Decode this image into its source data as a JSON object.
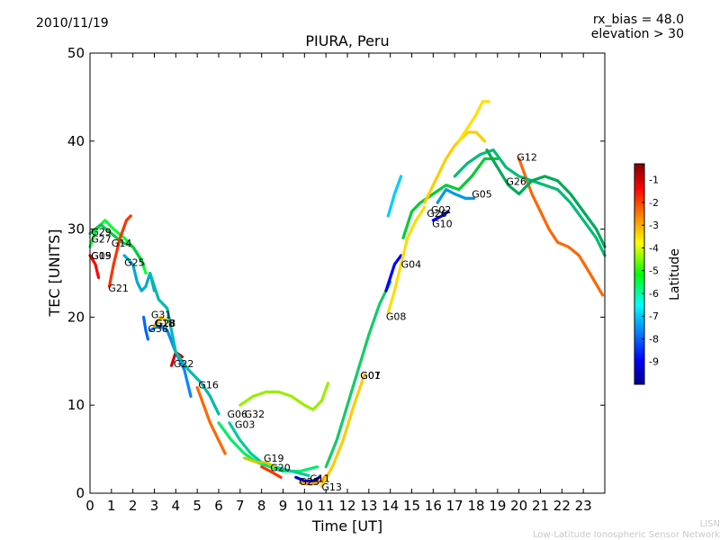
{
  "header": {
    "date": "2010/11/19",
    "rx_bias": "rx_bias = 48.0",
    "elevation": "elevation > 30"
  },
  "footer": {
    "line1": "LISN",
    "line2": "Low-Latitude Ionospheric Sensor Network"
  },
  "chart_data": {
    "type": "line",
    "title": "PIURA, Peru",
    "xlabel": "Time [UT]",
    "ylabel": "TEC [UNITS]",
    "xlim": [
      0,
      24
    ],
    "ylim": [
      0,
      50
    ],
    "xticks": [
      "0",
      "1",
      "2",
      "3",
      "4",
      "5",
      "6",
      "7",
      "8",
      "9",
      "10",
      "11",
      "12",
      "13",
      "14",
      "15",
      "16",
      "17",
      "18",
      "19",
      "20",
      "21",
      "22",
      "23"
    ],
    "yticks": [
      "0",
      "10",
      "20",
      "30",
      "40",
      "50"
    ],
    "grid": false,
    "colorbar": {
      "label": "Latitude",
      "range": [
        -10,
        -0.3
      ],
      "ticks": [
        "-1",
        "-2",
        "-3",
        "-4",
        "-5",
        "-6",
        "-7",
        "-8",
        "-9"
      ]
    },
    "series": [
      {
        "name": "G29",
        "color": "#ff0000",
        "points": [
          [
            0,
            27
          ],
          [
            0.25,
            26
          ],
          [
            0.4,
            24.5
          ]
        ]
      },
      {
        "name": "G27",
        "color": "#00ff33",
        "points": [
          [
            0,
            28
          ],
          [
            0.3,
            30
          ],
          [
            0.7,
            31
          ],
          [
            1.1,
            30
          ],
          [
            1.6,
            29
          ],
          [
            2.0,
            28
          ],
          [
            2.4,
            26.5
          ],
          [
            2.6,
            25
          ]
        ]
      },
      {
        "name": "G14",
        "color": "#00cc44",
        "points": [
          [
            0,
            29.5
          ],
          [
            0.5,
            30.5
          ],
          [
            1,
            29.5
          ],
          [
            1.5,
            28.5
          ],
          [
            2,
            28
          ],
          [
            2.5,
            26
          ]
        ]
      },
      {
        "name": "G21",
        "color": "#ff3300",
        "points": [
          [
            0.9,
            23.5
          ],
          [
            1.1,
            26
          ],
          [
            1.4,
            29
          ],
          [
            1.7,
            31
          ],
          [
            1.9,
            31.5
          ]
        ]
      },
      {
        "name": "G25",
        "color": "#00aacc",
        "points": [
          [
            1.6,
            27
          ],
          [
            2,
            26
          ],
          [
            2.2,
            24
          ],
          [
            2.4,
            23
          ],
          [
            2.6,
            23.5
          ],
          [
            2.8,
            25
          ],
          [
            3.0,
            23
          ]
        ]
      },
      {
        "name": "G31",
        "color": "#0066ff",
        "points": [
          [
            2.5,
            20
          ],
          [
            2.6,
            18.5
          ],
          [
            2.7,
            17.5
          ]
        ]
      },
      {
        "name": "G38",
        "color": "#0088ff",
        "points": [
          [
            2.8,
            18.5
          ],
          [
            3.2,
            19
          ],
          [
            3.6,
            18.5
          ],
          [
            4.0,
            16
          ],
          [
            4.4,
            14
          ],
          [
            4.7,
            11
          ]
        ]
      },
      {
        "name": "G18",
        "color": "#ffcc00",
        "points": [
          [
            3.0,
            19
          ],
          [
            3.3,
            20
          ],
          [
            3.6,
            19.5
          ]
        ]
      },
      {
        "name": "G22",
        "color": "#cc0000",
        "points": [
          [
            3.8,
            14.5
          ],
          [
            4.0,
            16
          ],
          [
            4.3,
            15.5
          ]
        ]
      },
      {
        "name": "G16",
        "color": "#00bbaa",
        "points": [
          [
            2.8,
            25
          ],
          [
            3.2,
            22
          ],
          [
            3.6,
            21
          ],
          [
            4.0,
            16
          ],
          [
            4.6,
            14
          ],
          [
            5.2,
            12.5
          ],
          [
            5.6,
            11
          ],
          [
            6.0,
            9
          ]
        ]
      },
      {
        "name": "G06",
        "color": "#ff6600",
        "points": [
          [
            5.0,
            12
          ],
          [
            5.3,
            10
          ],
          [
            5.6,
            8
          ],
          [
            6.0,
            6
          ],
          [
            6.3,
            4.5
          ]
        ]
      },
      {
        "name": "G32",
        "color": "#00ee66",
        "points": [
          [
            6.0,
            8
          ],
          [
            6.6,
            6
          ],
          [
            7.2,
            4.5
          ],
          [
            7.8,
            3.5
          ],
          [
            8.4,
            3
          ],
          [
            9.0,
            2.5
          ],
          [
            9.8,
            2.5
          ],
          [
            10.6,
            3
          ]
        ]
      },
      {
        "name": "G03",
        "color": "#00cc99",
        "points": [
          [
            6.5,
            8
          ],
          [
            7.0,
            6
          ],
          [
            7.5,
            4.5
          ],
          [
            8.0,
            3.5
          ],
          [
            8.6,
            3
          ],
          [
            9.4,
            2.5
          ],
          [
            10.2,
            2
          ]
        ]
      },
      {
        "name": "G19",
        "color": "#cccc00",
        "points": [
          [
            7.2,
            4
          ],
          [
            7.8,
            3.5
          ],
          [
            8.2,
            3.5
          ],
          [
            8.6,
            3
          ]
        ]
      },
      {
        "name": "G20",
        "color": "#ff3300",
        "points": [
          [
            8.0,
            3
          ],
          [
            8.4,
            2.5
          ],
          [
            8.9,
            1.8
          ]
        ]
      },
      {
        "name": "G23",
        "color": "#0000cc",
        "points": [
          [
            9.6,
            1.8
          ],
          [
            10.0,
            1.4
          ],
          [
            10.4,
            1.4
          ],
          [
            10.7,
            1.8
          ]
        ]
      },
      {
        "name": "G11",
        "color": "#ff9900",
        "points": [
          [
            9.8,
            1.2
          ],
          [
            10.3,
            1.0
          ],
          [
            10.8,
            1.4
          ],
          [
            11.0,
            2
          ]
        ]
      },
      {
        "name": "G13",
        "color": "#ffcc00",
        "points": [
          [
            10.8,
            0.8
          ],
          [
            11.3,
            3
          ],
          [
            11.8,
            6
          ],
          [
            12.3,
            10
          ],
          [
            12.8,
            13.5
          ]
        ]
      },
      {
        "name": "G07",
        "color": "#11cc66",
        "points": [
          [
            11.0,
            3
          ],
          [
            11.5,
            6
          ],
          [
            12.0,
            10
          ],
          [
            12.5,
            14
          ],
          [
            13.0,
            18
          ],
          [
            13.5,
            21.5
          ],
          [
            14.0,
            24
          ]
        ]
      },
      {
        "name": "G04",
        "color": "#0000ff",
        "points": [
          [
            13.8,
            23
          ],
          [
            14.2,
            26
          ],
          [
            14.5,
            27
          ]
        ]
      },
      {
        "name": "G08",
        "color": "#ffdd00",
        "points": [
          [
            13.9,
            20.5
          ],
          [
            14.2,
            23
          ],
          [
            14.5,
            26
          ],
          [
            14.8,
            29
          ],
          [
            15.2,
            31
          ],
          [
            15.6,
            32.5
          ]
        ]
      },
      {
        "name": "G02",
        "color": "#00cc33",
        "points": [
          [
            14.6,
            29
          ],
          [
            15.0,
            32
          ],
          [
            15.4,
            33
          ],
          [
            16.0,
            34
          ],
          [
            16.6,
            35
          ],
          [
            17.2,
            34.5
          ],
          [
            17.8,
            36
          ],
          [
            18.4,
            38
          ],
          [
            19.0,
            38
          ]
        ]
      },
      {
        "name": "G10",
        "color": "#0000ff",
        "points": [
          [
            16.0,
            31
          ],
          [
            16.4,
            31.5
          ],
          [
            16.7,
            32
          ]
        ]
      },
      {
        "name": "G05",
        "color": "#0099dd",
        "points": [
          [
            16.2,
            33
          ],
          [
            16.6,
            34.5
          ],
          [
            17.0,
            34
          ],
          [
            17.5,
            33.5
          ],
          [
            17.9,
            33.5
          ]
        ]
      },
      {
        "name": "G26",
        "color": "#ffcc00",
        "points": [
          [
            15.6,
            33
          ],
          [
            16.0,
            35
          ],
          [
            16.6,
            38
          ],
          [
            17.0,
            39.5
          ],
          [
            17.6,
            41
          ],
          [
            18.0,
            41
          ],
          [
            18.4,
            40
          ]
        ]
      },
      {
        "name": "G12",
        "color": "#ff6600",
        "points": [
          [
            20.0,
            38
          ],
          [
            20.3,
            36
          ],
          [
            20.6,
            34
          ],
          [
            21.0,
            32
          ],
          [
            21.4,
            30
          ],
          [
            21.8,
            28.5
          ],
          [
            22.3,
            28
          ],
          [
            22.8,
            27
          ],
          [
            23.3,
            25
          ],
          [
            23.9,
            22.5
          ]
        ]
      },
      {
        "name": "",
        "color": "#00bb77",
        "points": [
          [
            17.0,
            36
          ],
          [
            17.6,
            37.5
          ],
          [
            18.2,
            38.5
          ],
          [
            18.8,
            39
          ],
          [
            19.4,
            37
          ],
          [
            20.0,
            36
          ],
          [
            20.6,
            35.5
          ],
          [
            21.2,
            35
          ],
          [
            21.8,
            34.5
          ],
          [
            22.4,
            33
          ],
          [
            23.0,
            31
          ],
          [
            23.6,
            29
          ],
          [
            24,
            27
          ]
        ]
      },
      {
        "name": "",
        "color": "#ffe000",
        "points": [
          [
            17.2,
            40
          ],
          [
            17.6,
            41.5
          ],
          [
            18.0,
            43
          ],
          [
            18.3,
            44.5
          ],
          [
            18.6,
            44.5
          ]
        ]
      },
      {
        "name": "",
        "color": "#00aa55",
        "points": [
          [
            18.5,
            39
          ],
          [
            19.0,
            37
          ],
          [
            19.5,
            35
          ],
          [
            20.0,
            34
          ],
          [
            20.6,
            35.5
          ],
          [
            21.2,
            36
          ],
          [
            21.8,
            35.5
          ],
          [
            22.4,
            34
          ],
          [
            23.0,
            32
          ],
          [
            23.6,
            30
          ],
          [
            24,
            28
          ]
        ]
      },
      {
        "name": "",
        "color": "#00ccff",
        "points": [
          [
            13.9,
            31.5
          ],
          [
            14.2,
            34
          ],
          [
            14.5,
            36
          ]
        ]
      },
      {
        "name": "",
        "color": "#99ee00",
        "points": [
          [
            7.0,
            10
          ],
          [
            7.6,
            11
          ],
          [
            8.2,
            11.5
          ],
          [
            8.8,
            11.5
          ],
          [
            9.4,
            11
          ],
          [
            10.0,
            10
          ],
          [
            10.4,
            9.5
          ],
          [
            10.8,
            10.5
          ],
          [
            11.1,
            12.5
          ]
        ]
      }
    ],
    "labels": [
      {
        "text": "G29",
        "x": 0.05,
        "y": 29.3
      },
      {
        "text": "G27",
        "x": 0.05,
        "y": 28.5
      },
      {
        "text": "G15",
        "x": 0.05,
        "y": 26.6
      },
      {
        "text": "G09",
        "x": 0.05,
        "y": 26.6
      },
      {
        "text": "G14",
        "x": 1.0,
        "y": 28.0
      },
      {
        "text": "G25",
        "x": 1.6,
        "y": 25.8
      },
      {
        "text": "G21",
        "x": 0.85,
        "y": 22.9
      },
      {
        "text": "G31",
        "x": 2.85,
        "y": 19.9
      },
      {
        "text": "G18",
        "x": 3.0,
        "y": 18.9
      },
      {
        "text": "G28",
        "x": 3.05,
        "y": 18.9
      },
      {
        "text": "G38",
        "x": 2.7,
        "y": 18.3
      },
      {
        "text": "G22",
        "x": 3.9,
        "y": 14.3
      },
      {
        "text": "G16",
        "x": 5.05,
        "y": 11.9
      },
      {
        "text": "G06",
        "x": 6.4,
        "y": 8.6
      },
      {
        "text": "G32",
        "x": 7.2,
        "y": 8.6
      },
      {
        "text": "G03",
        "x": 6.75,
        "y": 7.4
      },
      {
        "text": "G19",
        "x": 8.1,
        "y": 3.6
      },
      {
        "text": "G20",
        "x": 8.4,
        "y": 2.5
      },
      {
        "text": "G11",
        "x": 10.25,
        "y": 1.3
      },
      {
        "text": "G23",
        "x": 9.75,
        "y": 0.9
      },
      {
        "text": "G13",
        "x": 10.8,
        "y": 0.3
      },
      {
        "text": "G07",
        "x": 12.6,
        "y": 13.0
      },
      {
        "text": "G01",
        "x": 12.6,
        "y": 13.0
      },
      {
        "text": "G08",
        "x": 13.8,
        "y": 19.7
      },
      {
        "text": "G04",
        "x": 14.5,
        "y": 25.6
      },
      {
        "text": "G02",
        "x": 15.9,
        "y": 31.8
      },
      {
        "text": "G26",
        "x": 15.7,
        "y": 31.4
      },
      {
        "text": "G10",
        "x": 15.95,
        "y": 30.2
      },
      {
        "text": "G05",
        "x": 17.8,
        "y": 33.6
      },
      {
        "text": "G26",
        "x": 19.4,
        "y": 35.0
      },
      {
        "text": "G12",
        "x": 19.9,
        "y": 37.8
      }
    ]
  }
}
